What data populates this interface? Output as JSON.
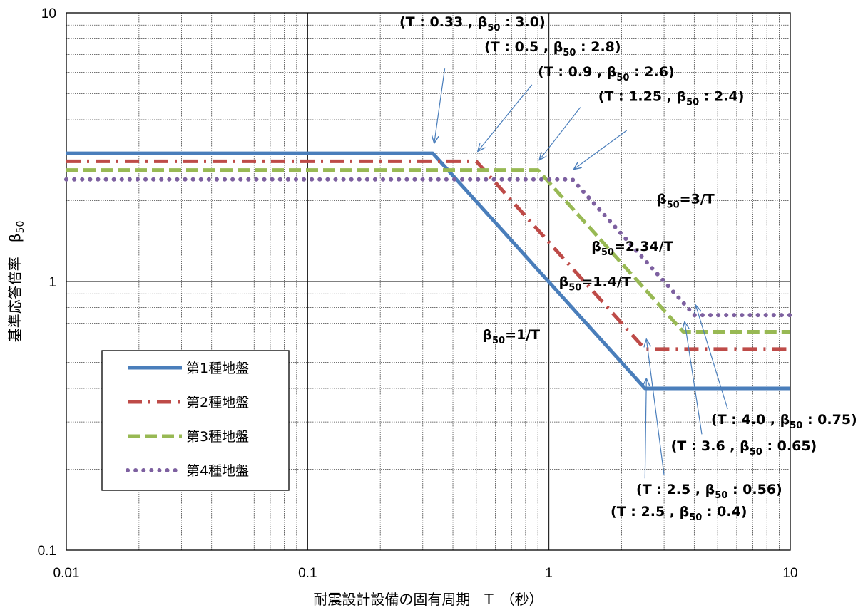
{
  "chart_data": {
    "type": "line",
    "xlabel": "耐震設計設備の固有周期　T　（秒）",
    "ylabel_main": "基準応答倍率　β",
    "ylabel_sub": "50",
    "xscale": "log",
    "yscale": "log",
    "xlim": [
      0.01,
      10
    ],
    "ylim": [
      0.1,
      10
    ],
    "x_ticks": [
      "0.01",
      "0.1",
      "1",
      "10"
    ],
    "y_ticks": [
      "0.1",
      "1",
      "10"
    ],
    "grid": true,
    "legend_placement": "lower-left",
    "series": [
      {
        "name": "第1種地盤",
        "color": "#4a7ebb",
        "dash": "solid",
        "x": [
          0.01,
          0.33,
          2.5,
          10
        ],
        "y": [
          3.0,
          3.0,
          0.4,
          0.4
        ]
      },
      {
        "name": "第2種地盤",
        "color": "#be4b48",
        "dash": "dashdot",
        "x": [
          0.01,
          0.5,
          2.5,
          10
        ],
        "y": [
          2.8,
          2.8,
          0.56,
          0.56
        ]
      },
      {
        "name": "第3種地盤",
        "color": "#98b954",
        "dash": "dash",
        "x": [
          0.01,
          0.9,
          3.6,
          10
        ],
        "y": [
          2.6,
          2.6,
          0.65,
          0.65
        ]
      },
      {
        "name": "第4種地盤",
        "color": "#7d60a0",
        "dash": "dot",
        "x": [
          0.01,
          1.25,
          4.0,
          10
        ],
        "y": [
          2.4,
          2.4,
          0.75,
          0.75
        ]
      }
    ],
    "formula_labels": [
      {
        "main": "β",
        "sub": "50",
        "rest": "=3/T",
        "x": 2.8,
        "y": 1.95
      },
      {
        "main": "β",
        "sub": "50",
        "rest": "=2.34/T",
        "x": 1.5,
        "y": 1.3
      },
      {
        "main": "β",
        "sub": "50",
        "rest": "=1.4/T",
        "x": 1.1,
        "y": 0.96
      },
      {
        "main": "β",
        "sub": "50",
        "rest": "=1/T",
        "x": 0.53,
        "y": 0.61
      }
    ],
    "point_annotations": [
      {
        "pre": "(T : 0.33 , β",
        "sub": "50",
        "post": " : 3.0)",
        "x": 0.24,
        "y": 8.9,
        "point": [
          0.33,
          3.0
        ],
        "tail": [
          0.37,
          6.2
        ]
      },
      {
        "pre": "(T : 0.5 , β",
        "sub": "50",
        "post": " : 2.8)",
        "x": 0.54,
        "y": 7.2,
        "point": [
          0.5,
          2.8
        ],
        "tail": [
          0.85,
          5.4
        ]
      },
      {
        "pre": "(T : 0.9 , β",
        "sub": "50",
        "post": " : 2.6)",
        "x": 0.9,
        "y": 5.8,
        "point": [
          0.9,
          2.6
        ],
        "tail": [
          1.35,
          4.45
        ]
      },
      {
        "pre": "(T : 1.25 , β",
        "sub": "50",
        "post": " : 2.4)",
        "x": 1.6,
        "y": 4.7,
        "point": [
          1.25,
          2.4
        ],
        "tail": [
          2.1,
          3.65
        ]
      },
      {
        "pre": "(T : 4.0 , β",
        "sub": "50",
        "post": " : 0.75)",
        "x": 4.7,
        "y": 0.295,
        "point": [
          4.0,
          0.75
        ],
        "tail": [
          5.5,
          0.335
        ]
      },
      {
        "pre": "(T : 3.6 , β",
        "sub": "50",
        "post": " : 0.65)",
        "x": 3.2,
        "y": 0.235,
        "point": [
          3.6,
          0.65
        ],
        "tail": [
          4.3,
          0.27
        ]
      },
      {
        "pre": "(T : 2.5 , β",
        "sub": "50",
        "post": " : 0.56)",
        "x": 2.3,
        "y": 0.162,
        "point": [
          2.5,
          0.56
        ],
        "tail": [
          3.0,
          0.19
        ]
      },
      {
        "pre": "(T : 2.5 , β",
        "sub": "50",
        "post": " : 0.4)",
        "x": 1.8,
        "y": 0.134,
        "point": [
          2.5,
          0.4
        ],
        "tail": [
          2.5,
          0.185
        ]
      }
    ]
  }
}
